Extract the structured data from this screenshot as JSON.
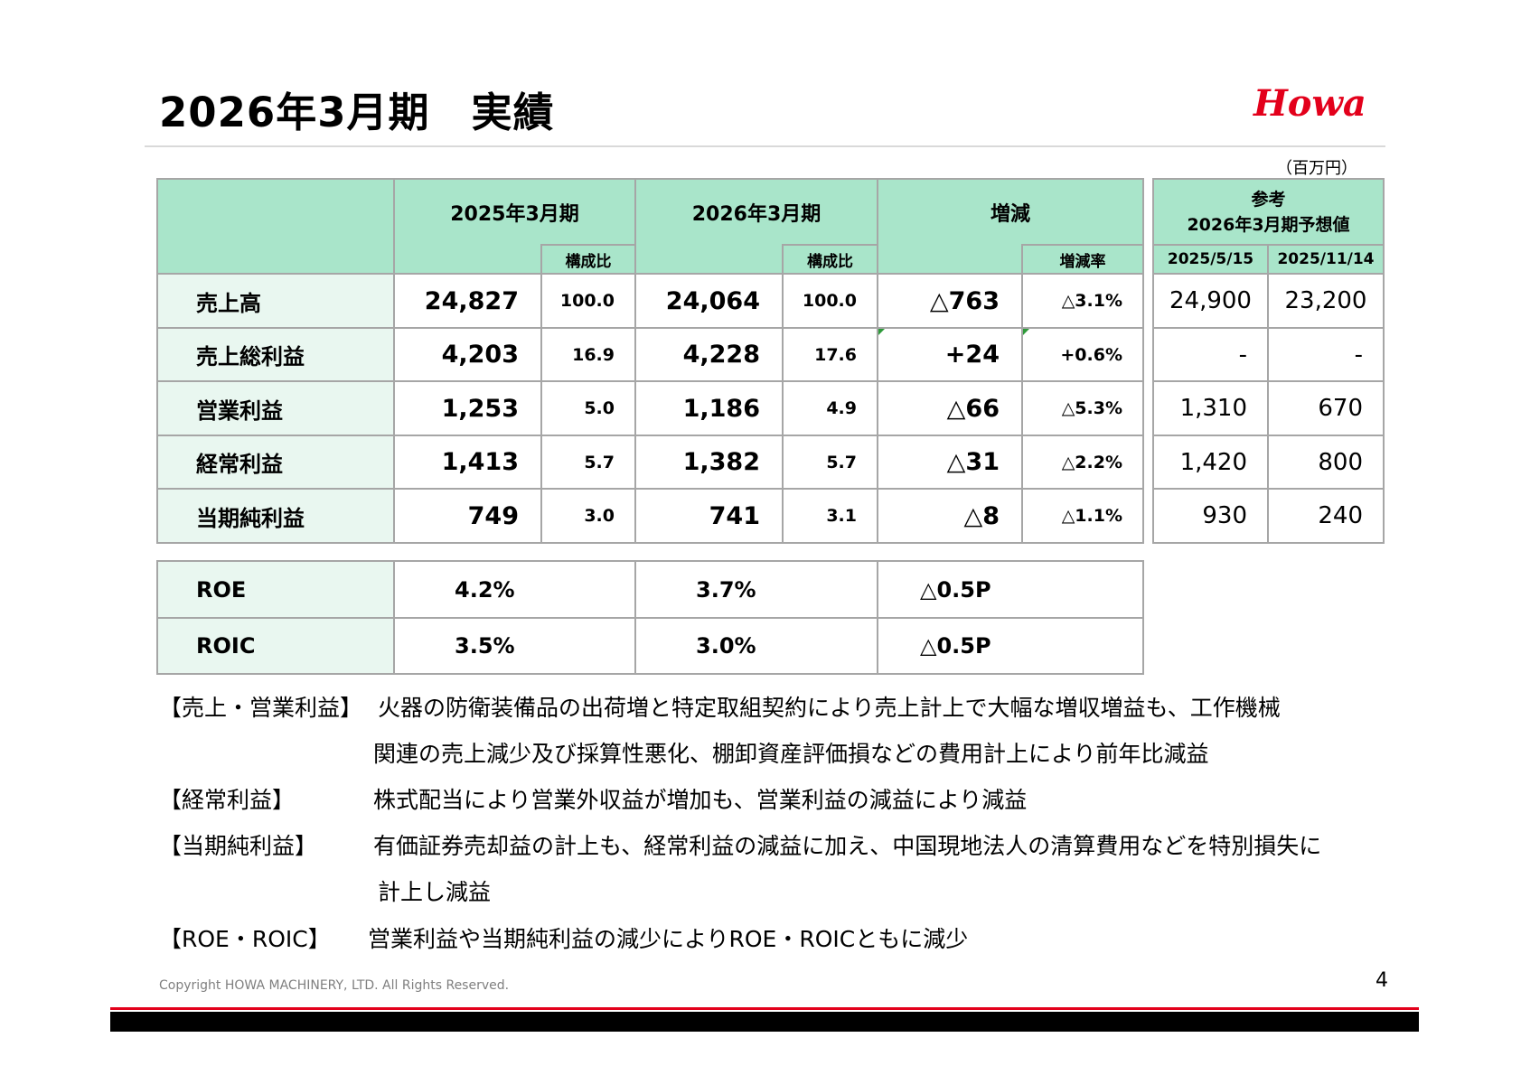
{
  "title": "2026年3月期　実績",
  "logo_text": "Howa",
  "unit": "（百万円）",
  "columns": {
    "fy2025": "2025年3月期",
    "fy2026": "2026年3月期",
    "change": "増減",
    "ratio": "構成比",
    "change_rate": "増減率",
    "ref_title_1": "参考",
    "ref_title_2": "2026年3月期予想値",
    "ref_date_1": "2025/5/15",
    "ref_date_2": "2025/11/14"
  },
  "rows": [
    {
      "label": "売上高",
      "fy2025": "24,827",
      "fy2025_ratio": "100.0",
      "fy2026": "24,064",
      "fy2026_ratio": "100.0",
      "change": "△763",
      "change_rate": "△3.1%",
      "ref1": "24,900",
      "ref2": "23,200"
    },
    {
      "label": "売上総利益",
      "fy2025": "4,203",
      "fy2025_ratio": "16.9",
      "fy2026": "4,228",
      "fy2026_ratio": "17.6",
      "change": "+24",
      "change_rate": "+0.6%",
      "ref1": "-",
      "ref2": "-"
    },
    {
      "label": "営業利益",
      "fy2025": "1,253",
      "fy2025_ratio": "5.0",
      "fy2026": "1,186",
      "fy2026_ratio": "4.9",
      "change": "△66",
      "change_rate": "△5.3%",
      "ref1": "1,310",
      "ref2": "670"
    },
    {
      "label": "経常利益",
      "fy2025": "1,413",
      "fy2025_ratio": "5.7",
      "fy2026": "1,382",
      "fy2026_ratio": "5.7",
      "change": "△31",
      "change_rate": "△2.2%",
      "ref1": "1,420",
      "ref2": "800"
    },
    {
      "label": "当期純利益",
      "fy2025": "749",
      "fy2025_ratio": "3.0",
      "fy2026": "741",
      "fy2026_ratio": "3.1",
      "change": "△8",
      "change_rate": "△1.1%",
      "ref1": "930",
      "ref2": "240"
    }
  ],
  "kpis": [
    {
      "label": "ROE",
      "fy2025": "4.2%",
      "fy2026": "3.7%",
      "change": "△0.5P"
    },
    {
      "label": "ROIC",
      "fy2025": "3.5%",
      "fy2026": "3.0%",
      "change": "△0.5P"
    }
  ],
  "notes": {
    "sales_label": "【売上・営業利益】",
    "sales_line1": "火器の防衛装備品の出荷増と特定取組契約により売上計上で大幅な増収増益も、工作機械",
    "sales_line2": "関連の売上減少及び採算性悪化、棚卸資産評価損などの費用計上により前年比減益",
    "ordinary_label": "【経常利益】",
    "ordinary_text": "株式配当により営業外収益が増加も、営業利益の減益により減益",
    "net_label": "【当期純利益】",
    "net_line1": "有価証券売却益の計上も、経常利益の減益に加え、中国現地法人の清算費用などを特別損失に",
    "net_line2": "計上し減益",
    "roe_label": "【ROE・ROIC】",
    "roe_text": "営業利益や当期純利益の減少によりROE・ROICともに減少"
  },
  "footer": {
    "copyright": "Copyright HOWA MACHINERY, LTD. All Rights Reserved.",
    "page": "4"
  },
  "colors": {
    "header_green": "#a9e5ca",
    "label_green": "#e9f7f0",
    "accent_red": "#e3001b"
  }
}
